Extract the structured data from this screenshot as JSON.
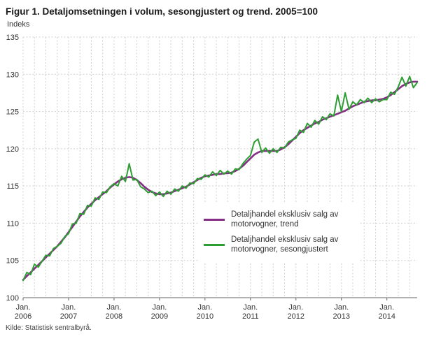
{
  "source": "Kilde: Statistisk sentralbyrå.",
  "colors": {
    "trend": "#862d86",
    "seasonal": "#2e9e34",
    "grid": "#d0d0d0",
    "axis": "#666666",
    "text": "#333333"
  },
  "chart_data": {
    "type": "line",
    "title": "Figur 1. Detaljomsetningen i volum, sesongjustert og trend. 2005=100",
    "ylabel": "Indeks",
    "ylim": [
      100,
      135
    ],
    "ytick_step": 5,
    "grid": true,
    "legend_position": "center-right",
    "x_frequency": "monthly",
    "x_tick_prefix": "Jan.",
    "x_ticks": [
      "2006",
      "2007",
      "2008",
      "2009",
      "2010",
      "2011",
      "2012",
      "2013",
      "2014"
    ],
    "series": [
      {
        "name": "Detaljhandel eksklusiv salg av motorvogner, trend",
        "color": "#862d86",
        "values": [
          102.4,
          102.9,
          103.4,
          103.9,
          104.4,
          104.9,
          105.4,
          105.9,
          106.4,
          106.9,
          107.5,
          108.1,
          108.8,
          109.5,
          110.2,
          110.9,
          111.5,
          112.1,
          112.6,
          113.1,
          113.5,
          113.9,
          114.3,
          114.8,
          115.2,
          115.6,
          115.9,
          116.1,
          116.2,
          116.1,
          115.8,
          115.4,
          114.9,
          114.5,
          114.2,
          114.0,
          113.9,
          113.9,
          114.0,
          114.1,
          114.3,
          114.5,
          114.7,
          114.9,
          115.2,
          115.5,
          115.8,
          116.1,
          116.3,
          116.4,
          116.5,
          116.6,
          116.6,
          116.7,
          116.7,
          116.8,
          117.0,
          117.3,
          117.7,
          118.2,
          118.7,
          119.2,
          119.5,
          119.7,
          119.7,
          119.7,
          119.7,
          119.7,
          119.9,
          120.2,
          120.6,
          121.1,
          121.6,
          122.1,
          122.5,
          122.8,
          123.1,
          123.4,
          123.6,
          123.9,
          124.1,
          124.3,
          124.5,
          124.7,
          124.9,
          125.1,
          125.4,
          125.7,
          125.9,
          126.1,
          126.3,
          126.4,
          126.5,
          126.5,
          126.6,
          126.7,
          126.9,
          127.2,
          127.6,
          128.0,
          128.4,
          128.7,
          128.9,
          129.0,
          129.0
        ]
      },
      {
        "name": "Detaljhandel eksklusiv salg av motorvogner, sesongjustert",
        "color": "#2e9e34",
        "values": [
          102.3,
          103.4,
          103.1,
          104.5,
          104.1,
          104.9,
          105.7,
          105.6,
          106.6,
          106.9,
          107.3,
          108.2,
          108.6,
          109.9,
          110.0,
          111.3,
          111.2,
          112.4,
          112.3,
          113.4,
          113.2,
          114.2,
          114.1,
          114.9,
          115.3,
          115.0,
          116.3,
          115.6,
          118.0,
          115.8,
          115.9,
          114.9,
          114.6,
          114.1,
          114.3,
          113.7,
          114.2,
          113.6,
          114.3,
          113.9,
          114.6,
          114.3,
          115.0,
          114.7,
          115.4,
          115.3,
          116.0,
          115.9,
          116.5,
          116.2,
          116.9,
          116.4,
          117.1,
          116.6,
          117.0,
          116.6,
          117.3,
          117.2,
          118.0,
          118.6,
          119.1,
          120.9,
          121.3,
          119.5,
          120.1,
          119.4,
          120.0,
          119.5,
          120.2,
          120.1,
          120.9,
          121.2,
          121.4,
          122.5,
          122.2,
          123.4,
          122.9,
          123.8,
          123.3,
          124.3,
          123.9,
          124.7,
          124.4,
          127.2,
          125.0,
          127.5,
          125.3,
          126.3,
          125.9,
          126.6,
          126.2,
          126.8,
          126.2,
          126.7,
          126.3,
          126.6,
          126.6,
          127.6,
          127.3,
          128.3,
          129.6,
          128.4,
          129.7,
          128.2,
          128.9
        ]
      }
    ]
  }
}
